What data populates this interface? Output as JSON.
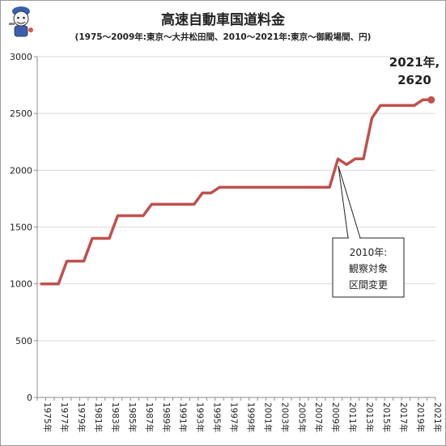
{
  "title": "高速自動車国道料金",
  "subtitle": "(1975～2009年:東京～大井松田間、2010～2021年:東京～御殿場間、円)",
  "callout": {
    "line1": "2010年:",
    "line2": "観察対象",
    "line3": "区間変更"
  },
  "colors": {
    "series": "#c0504d",
    "grid": "#d9d9d9",
    "axis": "#8c8c8c",
    "text": "#222222"
  },
  "chart_data": {
    "type": "line",
    "title": "高速自動車国道料金",
    "subtitle": "(1975～2009年:東京～大井松田間、2010～2021年:東京～御殿場間、円)",
    "xlabel": "",
    "ylabel": "",
    "ylim": [
      0,
      3000
    ],
    "yticks": [
      0,
      500,
      1000,
      1500,
      2000,
      2500,
      3000
    ],
    "grid": "horizontal",
    "legend": "none",
    "x": [
      "1975年",
      "1976年",
      "1977年",
      "1978年",
      "1979年",
      "1980年",
      "1981年",
      "1982年",
      "1983年",
      "1984年",
      "1985年",
      "1986年",
      "1987年",
      "1988年",
      "1989年",
      "1990年",
      "1991年",
      "1992年",
      "1993年",
      "1994年",
      "1995年",
      "1996年",
      "1997年",
      "1998年",
      "1999年",
      "2000年",
      "2001年",
      "2002年",
      "2003年",
      "2004年",
      "2005年",
      "2006年",
      "2007年",
      "2008年",
      "2009年",
      "2010年",
      "2011年",
      "2012年",
      "2013年",
      "2014年",
      "2015年",
      "2016年",
      "2017年",
      "2018年",
      "2019年",
      "2020年",
      "2021年"
    ],
    "xticklabels": [
      "1975年",
      "1977年",
      "1979年",
      "1981年",
      "1983年",
      "1985年",
      "1987年",
      "1989年",
      "1991年",
      "1993年",
      "1995年",
      "1997年",
      "1999年",
      "2001年",
      "2003年",
      "2005年",
      "2007年",
      "2009年",
      "2011年",
      "2013年",
      "2015年",
      "2017年",
      "2019年",
      "2021年"
    ],
    "series": [
      {
        "values": [
          1000,
          1000,
          1000,
          1200,
          1200,
          1200,
          1400,
          1400,
          1400,
          1600,
          1600,
          1600,
          1600,
          1700,
          1700,
          1700,
          1700,
          1700,
          1700,
          1800,
          1800,
          1850,
          1850,
          1850,
          1850,
          1850,
          1850,
          1850,
          1850,
          1850,
          1850,
          1850,
          1850,
          1850,
          1850,
          2100,
          2050,
          2100,
          2100,
          2460,
          2570,
          2570,
          2570,
          2570,
          2570,
          2620,
          2620
        ]
      }
    ],
    "annotations": [
      {
        "text": "2021年,",
        "text2": "2620",
        "x": "2021年",
        "y": 2620
      }
    ]
  }
}
